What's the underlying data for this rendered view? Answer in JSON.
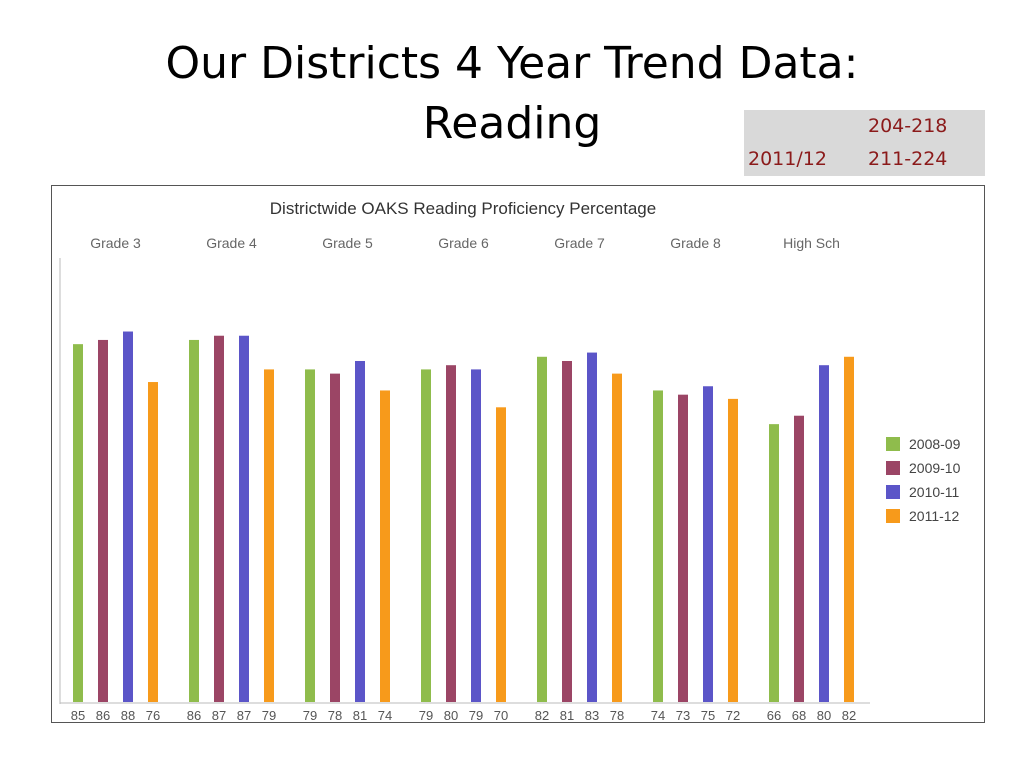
{
  "slide": {
    "title_line1": "Our Districts 4 Year Trend Data:",
    "title_line2": "Reading"
  },
  "score_table": {
    "row1": {
      "year": "",
      "range": "204-218"
    },
    "row2": {
      "year": "2011/12",
      "range": "211-224"
    }
  },
  "chart_data": {
    "type": "bar",
    "title": "Districtwide OAKS Reading Proficiency Percentage",
    "categories": [
      "Grade 3",
      "Grade 4",
      "Grade 5",
      "Grade 6",
      "Grade 7",
      "Grade 8",
      "High Sch"
    ],
    "series": [
      {
        "name": "2008-09",
        "color": "#8fbc4c",
        "values": [
          85,
          86,
          79,
          79,
          82,
          74,
          66
        ]
      },
      {
        "name": "2009-10",
        "color": "#9b4565",
        "values": [
          86,
          87,
          78,
          80,
          81,
          73,
          68
        ]
      },
      {
        "name": "2010-11",
        "color": "#5b55c8",
        "values": [
          88,
          87,
          81,
          79,
          83,
          75,
          80
        ]
      },
      {
        "name": "2011-12",
        "color": "#f79a1b",
        "values": [
          76,
          79,
          74,
          70,
          78,
          72,
          82
        ]
      }
    ],
    "ylim": [
      0,
      100
    ],
    "xlabel": "",
    "ylabel": "",
    "legend": "right",
    "grid": false
  }
}
